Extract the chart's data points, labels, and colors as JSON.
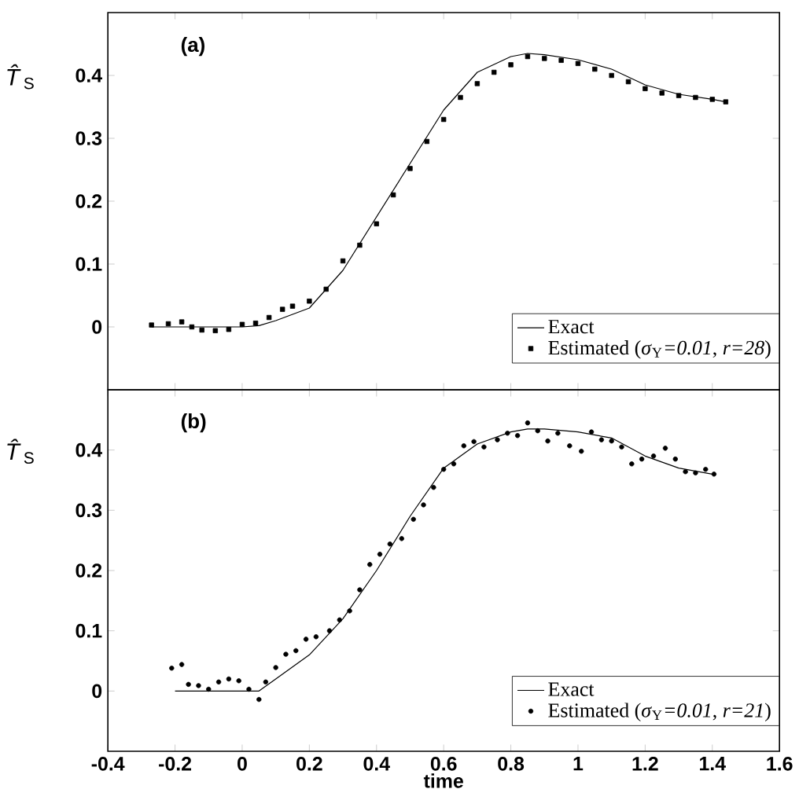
{
  "chart_data": [
    {
      "type": "line",
      "ylabel": "*T̂*$_{S}$",
      "annotations": [
        "(a)"
      ],
      "xlim": [
        -0.4,
        1.6
      ],
      "ylim": [
        -0.1,
        0.5
      ],
      "xticks": [
        -0.4,
        -0.2,
        0,
        0.2,
        0.4,
        0.6,
        0.8,
        1,
        1.2,
        1.4,
        1.6
      ],
      "yticks": [
        0,
        0.1,
        0.2,
        0.3,
        0.4
      ],
      "tick_labels": "y",
      "legend": "bottom right",
      "series": [
        {
          "name": "Exact",
          "type": "line",
          "color": "#000000",
          "x": [
            -0.27,
            -0.2,
            -0.1,
            0,
            0.05,
            0.1,
            0.2,
            0.3,
            0.4,
            0.5,
            0.6,
            0.7,
            0.8,
            0.85,
            0.9,
            1.0,
            1.1,
            1.2,
            1.3,
            1.4,
            1.44
          ],
          "values": [
            0.0,
            0.0,
            0.0,
            0.0,
            0.002,
            0.01,
            0.03,
            0.09,
            0.175,
            0.26,
            0.345,
            0.405,
            0.43,
            0.435,
            0.433,
            0.425,
            0.41,
            0.385,
            0.37,
            0.362,
            0.358
          ]
        },
        {
          "name": "Estimated (*σ*$_{Y}$*=0.01*, *r=28*)",
          "type": "scatter",
          "marker": "square",
          "color": "#000000",
          "x": [
            -0.27,
            -0.22,
            -0.18,
            -0.15,
            -0.12,
            -0.08,
            -0.04,
            0.0,
            0.04,
            0.08,
            0.12,
            0.15,
            0.2,
            0.25,
            0.3,
            0.35,
            0.4,
            0.45,
            0.5,
            0.55,
            0.6,
            0.65,
            0.7,
            0.75,
            0.8,
            0.85,
            0.9,
            0.95,
            1.0,
            1.05,
            1.1,
            1.15,
            1.2,
            1.25,
            1.3,
            1.35,
            1.4,
            1.44
          ],
          "values": [
            0.003,
            0.005,
            0.008,
            0.0,
            -0.005,
            -0.006,
            -0.004,
            0.004,
            0.006,
            0.015,
            0.028,
            0.033,
            0.041,
            0.06,
            0.105,
            0.13,
            0.164,
            0.21,
            0.252,
            0.295,
            0.33,
            0.365,
            0.387,
            0.405,
            0.417,
            0.43,
            0.427,
            0.424,
            0.419,
            0.41,
            0.4,
            0.39,
            0.379,
            0.372,
            0.368,
            0.365,
            0.362,
            0.358
          ]
        }
      ]
    },
    {
      "type": "line",
      "ylabel": "*T̂*$_{S}$",
      "xlabel": "time",
      "annotations": [
        "(b)"
      ],
      "xlim": [
        -0.4,
        1.6
      ],
      "ylim": [
        -0.1,
        0.5
      ],
      "xticks": [
        -0.4,
        -0.2,
        0,
        0.2,
        0.4,
        0.6,
        0.8,
        1,
        1.2,
        1.4,
        1.6
      ],
      "yticks": [
        0,
        0.1,
        0.2,
        0.3,
        0.4
      ],
      "legend": "bottom right",
      "series": [
        {
          "name": "Exact",
          "type": "line",
          "color": "#000000",
          "x": [
            -0.2,
            0,
            0.05,
            0.1,
            0.2,
            0.3,
            0.4,
            0.5,
            0.6,
            0.7,
            0.8,
            0.85,
            0.9,
            1.0,
            1.1,
            1.2,
            1.3,
            1.4
          ],
          "values": [
            0.0,
            0.0,
            0.0,
            0.02,
            0.06,
            0.12,
            0.2,
            0.29,
            0.37,
            0.41,
            0.43,
            0.435,
            0.435,
            0.43,
            0.42,
            0.39,
            0.37,
            0.36
          ]
        },
        {
          "name": "Estimated (*σ*$_{Y}$*=0.01*, *r=21*)",
          "type": "scatter",
          "marker": "circle",
          "color": "#000000",
          "x": [
            -0.21,
            -0.18,
            -0.16,
            -0.13,
            -0.1,
            -0.07,
            -0.04,
            -0.01,
            0.02,
            0.05,
            0.07,
            0.1,
            0.13,
            0.16,
            0.19,
            0.22,
            0.26,
            0.29,
            0.32,
            0.35,
            0.38,
            0.41,
            0.44,
            0.475,
            0.51,
            0.54,
            0.57,
            0.6,
            0.63,
            0.66,
            0.69,
            0.72,
            0.76,
            0.79,
            0.82,
            0.85,
            0.88,
            0.91,
            0.94,
            0.975,
            1.01,
            1.04,
            1.07,
            1.1,
            1.13,
            1.16,
            1.19,
            1.225,
            1.26,
            1.29,
            1.32,
            1.35,
            1.38,
            1.405
          ],
          "values": [
            0.038,
            0.044,
            0.011,
            0.009,
            0.003,
            0.015,
            0.02,
            0.017,
            0.003,
            -0.014,
            0.015,
            0.039,
            0.061,
            0.067,
            0.086,
            0.09,
            0.1,
            0.118,
            0.133,
            0.168,
            0.21,
            0.227,
            0.244,
            0.253,
            0.285,
            0.309,
            0.338,
            0.368,
            0.377,
            0.407,
            0.414,
            0.405,
            0.417,
            0.428,
            0.424,
            0.445,
            0.432,
            0.415,
            0.428,
            0.407,
            0.398,
            0.43,
            0.417,
            0.415,
            0.405,
            0.377,
            0.385,
            0.39,
            0.403,
            0.385,
            0.364,
            0.362,
            0.368,
            0.36
          ]
        }
      ]
    }
  ]
}
